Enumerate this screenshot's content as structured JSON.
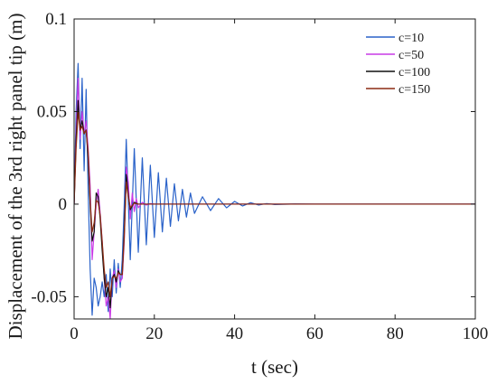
{
  "chart_data": {
    "type": "line",
    "xlabel": "t (sec)",
    "ylabel": "Displacement of the 3rd right panel tip (m)",
    "xlim": [
      0,
      100
    ],
    "ylim": [
      -0.062,
      0.1
    ],
    "xticks": [
      0,
      20,
      40,
      60,
      80,
      100
    ],
    "yticks": [
      -0.05,
      0,
      0.05,
      0.1
    ],
    "xtick_labels": [
      "0",
      "20",
      "40",
      "60",
      "80",
      "100"
    ],
    "ytick_labels": [
      "-0.05",
      "0",
      "0.05",
      "0.1"
    ],
    "grid": false,
    "legend_position": "top-right",
    "series": [
      {
        "name": "c=10",
        "color": "#2a62c9",
        "x": [
          0,
          0.5,
          1,
          1.5,
          2,
          2.5,
          3,
          3.5,
          4,
          4.5,
          5,
          5.5,
          6,
          6.5,
          7,
          7.5,
          8,
          8.5,
          9,
          9.5,
          10,
          10.5,
          11,
          11.5,
          12,
          12.5,
          13,
          14,
          15,
          16,
          17,
          18,
          19,
          20,
          21,
          22,
          23,
          24,
          25,
          26,
          27,
          28,
          29,
          30,
          32,
          34,
          36,
          38,
          40,
          42,
          44,
          46,
          48,
          50,
          55,
          60,
          70,
          80,
          90,
          100
        ],
        "y": [
          0,
          0.05,
          0.076,
          0.03,
          0.068,
          0.018,
          0.062,
          0.008,
          -0.035,
          -0.06,
          -0.04,
          -0.045,
          -0.055,
          -0.05,
          -0.042,
          -0.05,
          -0.038,
          -0.058,
          -0.035,
          -0.05,
          -0.03,
          -0.048,
          -0.032,
          -0.045,
          -0.03,
          0.0,
          0.035,
          -0.03,
          0.03,
          -0.026,
          0.025,
          -0.022,
          0.021,
          -0.018,
          0.017,
          -0.015,
          0.014,
          -0.012,
          0.011,
          -0.009,
          0.008,
          -0.007,
          0.006,
          -0.005,
          0.004,
          -0.0035,
          0.003,
          -0.002,
          0.0015,
          -0.001,
          0.0008,
          -0.0005,
          0.0003,
          -0.0002,
          0.0001,
          0,
          0,
          0,
          0,
          0
        ]
      },
      {
        "name": "c=50",
        "color": "#c93ae6",
        "x": [
          0,
          0.5,
          1,
          1.5,
          2,
          2.5,
          3,
          3.5,
          4,
          4.5,
          5,
          5.5,
          6,
          6.5,
          7,
          7.5,
          8,
          8.5,
          9,
          9.5,
          10,
          10.5,
          11,
          11.5,
          12,
          12.5,
          13,
          13.5,
          14,
          14.5,
          15,
          15.5,
          16,
          17,
          18,
          19,
          20,
          22,
          25,
          30,
          40,
          60,
          80,
          100
        ],
        "y": [
          0,
          0.04,
          0.068,
          0.035,
          0.05,
          0.038,
          0.045,
          0.03,
          0.01,
          -0.03,
          -0.015,
          0.0,
          0.008,
          -0.005,
          -0.02,
          -0.04,
          -0.055,
          -0.05,
          -0.062,
          -0.04,
          -0.036,
          -0.045,
          -0.035,
          -0.042,
          -0.04,
          -0.02,
          0.02,
          0.012,
          -0.008,
          0.006,
          -0.004,
          0.003,
          -0.002,
          0.001,
          -0.0005,
          0.0003,
          0,
          0,
          0,
          0,
          0,
          0,
          0,
          0
        ]
      },
      {
        "name": "c=100",
        "color": "#111111",
        "x": [
          0,
          0.5,
          1,
          1.5,
          2,
          2.5,
          3,
          3.5,
          4,
          4.5,
          5,
          5.5,
          6,
          6.5,
          7,
          7.5,
          8,
          8.5,
          9,
          9.5,
          10,
          10.5,
          11,
          11.5,
          12,
          12.5,
          13,
          13.5,
          14,
          15,
          16,
          18,
          20,
          30,
          40,
          60,
          80,
          100
        ],
        "y": [
          0,
          0.035,
          0.056,
          0.04,
          0.045,
          0.038,
          0.04,
          0.025,
          0.0,
          -0.02,
          -0.015,
          0.006,
          0.004,
          -0.008,
          -0.025,
          -0.04,
          -0.05,
          -0.045,
          -0.056,
          -0.04,
          -0.038,
          -0.042,
          -0.036,
          -0.038,
          -0.038,
          -0.015,
          0.016,
          0.005,
          -0.003,
          0.001,
          0,
          0,
          0,
          0,
          0,
          0,
          0,
          0
        ]
      },
      {
        "name": "c=150",
        "color": "#8b2a12",
        "x": [
          0,
          0.5,
          1,
          1.5,
          2,
          2.5,
          3,
          3.5,
          4,
          4.5,
          5,
          5.5,
          6,
          6.5,
          7,
          7.5,
          8,
          8.5,
          9,
          9.5,
          10,
          10.5,
          11,
          11.5,
          12,
          12.5,
          13,
          13.5,
          14,
          15,
          16,
          18,
          20,
          30,
          40,
          60,
          80,
          100
        ],
        "y": [
          0,
          0.03,
          0.05,
          0.04,
          0.042,
          0.038,
          0.04,
          0.028,
          0.002,
          -0.015,
          -0.01,
          0.002,
          0.001,
          -0.006,
          -0.02,
          -0.035,
          -0.045,
          -0.042,
          -0.05,
          -0.04,
          -0.039,
          -0.04,
          -0.037,
          -0.038,
          -0.038,
          -0.018,
          0.012,
          0.004,
          -0.002,
          0.0005,
          0,
          0,
          0,
          0,
          0,
          0,
          0,
          0
        ]
      }
    ]
  }
}
